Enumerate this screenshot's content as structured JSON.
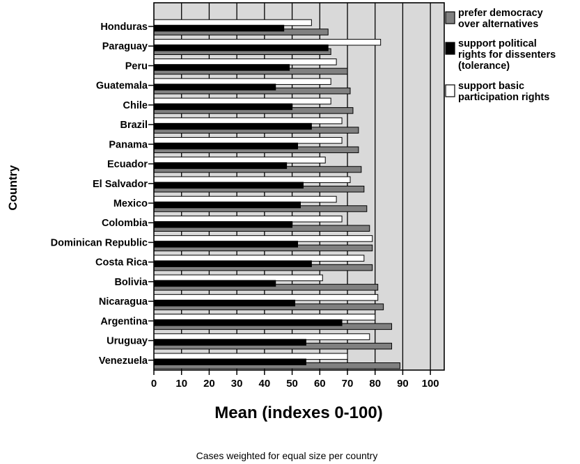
{
  "chart_data": {
    "type": "bar",
    "orientation": "horizontal",
    "xlabel": "Mean (indexes 0-100)",
    "ylabel": "Country",
    "xlim": [
      0,
      105
    ],
    "xticks": [
      0,
      10,
      20,
      30,
      40,
      50,
      60,
      70,
      80,
      90,
      100
    ],
    "grid": true,
    "legend_position": "right",
    "footnote": "Cases weighted for equal size per country",
    "categories": [
      "Honduras",
      "Paraguay",
      "Peru",
      "Guatemala",
      "Chile",
      "Brazil",
      "Panama",
      "Ecuador",
      "El Salvador",
      "Mexico",
      "Colombia",
      "Dominican Republic",
      "Costa Rica",
      "Bolivia",
      "Nicaragua",
      "Argentina",
      "Uruguay",
      "Venezuela"
    ],
    "series": [
      {
        "name": "support basic participation rights",
        "color": "#ffffff",
        "values": [
          57,
          82,
          66,
          64,
          64,
          68,
          68,
          62,
          71,
          66,
          68,
          79,
          76,
          61,
          81,
          80,
          78,
          70
        ]
      },
      {
        "name": "support political rights for dissenters (tolerance)",
        "color": "#000000",
        "values": [
          47,
          63,
          49,
          44,
          50,
          57,
          52,
          48,
          54,
          53,
          50,
          52,
          57,
          44,
          51,
          68,
          55,
          55
        ]
      },
      {
        "name": "prefer democracy over alternatives",
        "color": "#808080",
        "values": [
          63,
          64,
          70,
          71,
          72,
          74,
          74,
          75,
          76,
          77,
          78,
          79,
          79,
          81,
          83,
          86,
          86,
          89
        ]
      }
    ],
    "legend_order": [
      2,
      1,
      0
    ]
  }
}
